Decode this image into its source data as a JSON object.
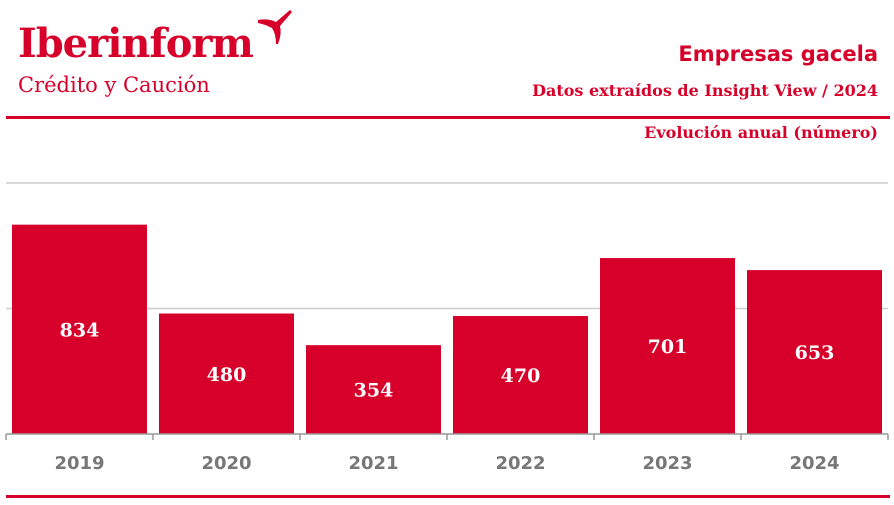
{
  "header": {
    "logo_name": "Iberinform",
    "logo_tagline": "Crédito y Caución",
    "title": "Empresas gacela",
    "subtitle": "Datos extraídos de Insight View / 2024"
  },
  "colors": {
    "brand": "#d6002a",
    "grid": "#cccccc",
    "axis_label": "#777777"
  },
  "chart_data": {
    "type": "bar",
    "title": "Evolución anual (número)",
    "categories": [
      "2019",
      "2020",
      "2021",
      "2022",
      "2023",
      "2024"
    ],
    "values": [
      834,
      480,
      354,
      470,
      701,
      653
    ],
    "xlabel": "",
    "ylabel": "",
    "ylim": [
      0,
      1000
    ],
    "gridlines": [
      500,
      1000
    ],
    "grid": true,
    "data_labels": [
      "834",
      "480",
      "354",
      "470",
      "701",
      "653"
    ]
  }
}
